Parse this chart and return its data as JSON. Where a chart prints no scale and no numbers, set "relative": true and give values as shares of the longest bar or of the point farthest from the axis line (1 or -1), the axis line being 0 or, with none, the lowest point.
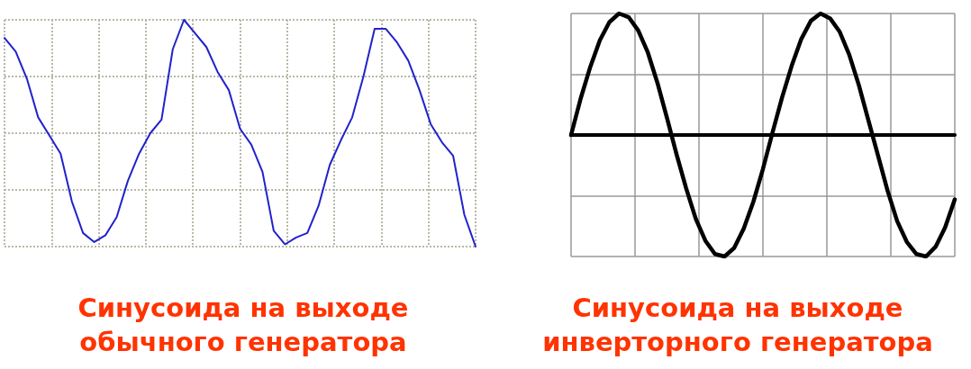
{
  "chart_data": [
    {
      "type": "line",
      "relative": true,
      "grid": true,
      "marker": "none",
      "line_style": "solid",
      "title": "Синусоида на выходе\nобычного генератора",
      "categories": [
        null,
        null,
        null,
        null,
        null,
        null,
        null,
        null,
        null,
        null,
        null,
        null,
        null,
        null,
        null,
        null,
        null,
        null,
        null,
        null,
        null,
        null,
        null,
        null,
        null,
        null,
        null,
        null,
        null,
        null,
        null,
        null,
        null,
        null,
        null,
        null,
        null,
        null,
        null,
        null,
        null,
        null,
        null
      ],
      "series": [
        {
          "color": "#2222cc",
          "values": [
            0.92,
            0.86,
            0.74,
            0.57,
            0.49,
            0.41,
            0.2,
            0.06,
            0.02,
            0.05,
            0.13,
            0.29,
            0.41,
            0.5,
            0.56,
            0.87,
            1,
            0.94,
            0.88,
            0.77,
            0.69,
            0.52,
            0.45,
            0.33,
            0.07,
            0.01,
            0.04,
            0.06,
            0.18,
            0.36,
            0.47,
            0.57,
            0.75,
            0.96,
            0.96,
            0.9,
            0.82,
            0.69,
            0.54,
            0.46,
            0.4,
            0.14,
            0
          ]
        }
      ]
    },
    {
      "type": "line",
      "relative": true,
      "grid": true,
      "marker": "none",
      "line_style": "solid",
      "title": "Синусоида на выходе\nинверторного генератора",
      "categories": [
        null,
        null,
        null,
        null,
        null,
        null,
        null,
        null,
        null,
        null,
        null,
        null,
        null,
        null,
        null,
        null,
        null,
        null,
        null,
        null,
        null,
        null,
        null,
        null,
        null,
        null,
        null,
        null,
        null,
        null,
        null,
        null,
        null,
        null,
        null,
        null,
        null,
        null,
        null,
        null,
        null
      ],
      "series": [
        {
          "color": "#000000",
          "values": [
            0,
            0.3,
            0.56,
            0.78,
            0.93,
            1,
            0.97,
            0.86,
            0.68,
            0.43,
            0.14,
            -0.16,
            -0.44,
            -0.69,
            -0.87,
            -0.98,
            -1,
            -0.93,
            -0.77,
            -0.55,
            -0.28,
            0.02,
            0.31,
            0.57,
            0.79,
            0.94,
            1,
            0.96,
            0.85,
            0.66,
            0.41,
            0.12,
            -0.17,
            -0.46,
            -0.71,
            -0.88,
            -0.98,
            -1,
            -0.92,
            -0.76,
            -0.53
          ]
        }
      ]
    }
  ]
}
